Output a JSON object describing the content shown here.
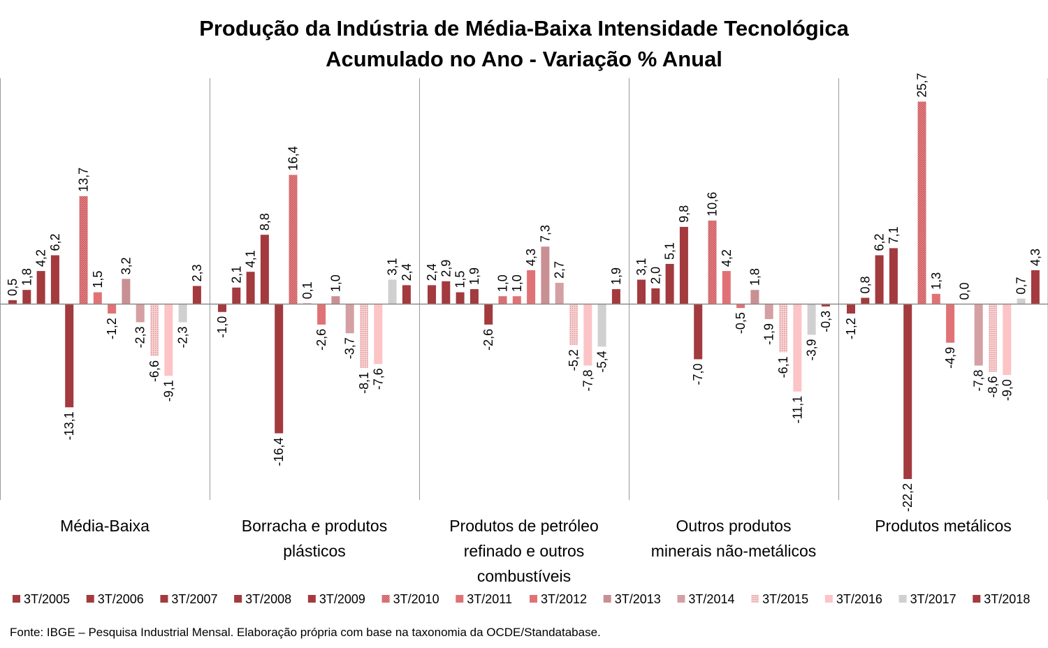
{
  "chart_data": {
    "type": "bar",
    "title": "Produção da Indústria de Média-Baixa Intensidade Tecnológica",
    "subtitle": "Acumulado no Ano - Variação % Anual",
    "categories": [
      "Média-Baixa",
      "Borracha e produtos plásticos",
      "Produtos de petróleo refinado e outros combustíveis",
      "Outros produtos minerais não-metálicos",
      "Produtos metálicos"
    ],
    "series": [
      {
        "name": "3T/2005",
        "color": "#a33a3e",
        "values": [
          0.5,
          -1.0,
          2.4,
          3.1,
          -1.2
        ]
      },
      {
        "name": "3T/2006",
        "color": "#a33a3e",
        "values": [
          1.8,
          2.1,
          2.9,
          2.0,
          0.8
        ]
      },
      {
        "name": "3T/2007",
        "color": "#a33a3e",
        "values": [
          4.2,
          4.1,
          1.5,
          5.1,
          6.2
        ]
      },
      {
        "name": "3T/2008",
        "color": "#a33a3e",
        "values": [
          6.2,
          8.8,
          1.9,
          9.8,
          7.1
        ]
      },
      {
        "name": "3T/2009",
        "color": "#a33a3e",
        "values": [
          -13.1,
          -16.4,
          -2.6,
          -7.0,
          -22.2
        ]
      },
      {
        "name": "3T/2010",
        "color": "#d9696c",
        "pattern": "hatch",
        "values": [
          13.7,
          16.4,
          1.0,
          10.6,
          25.7
        ]
      },
      {
        "name": "3T/2011",
        "color": "#e07275",
        "values": [
          1.5,
          0.1,
          1.0,
          4.2,
          1.3
        ]
      },
      {
        "name": "3T/2012",
        "color": "#e07275",
        "values": [
          -1.2,
          -2.6,
          4.3,
          -0.5,
          -4.9
        ]
      },
      {
        "name": "3T/2013",
        "color": "#c99093",
        "values": [
          3.2,
          1.0,
          7.3,
          1.8,
          0.0
        ]
      },
      {
        "name": "3T/2014",
        "color": "#d4a0a3",
        "values": [
          -2.3,
          -3.7,
          2.7,
          -1.9,
          -7.8
        ]
      },
      {
        "name": "3T/2015",
        "color": "#eca8ab",
        "pattern": "dots",
        "values": [
          -6.6,
          -8.1,
          -5.2,
          -6.1,
          -8.6
        ]
      },
      {
        "name": "3T/2016",
        "color": "#fcc4c6",
        "values": [
          -9.1,
          -7.6,
          -7.8,
          -11.1,
          -9.0
        ]
      },
      {
        "name": "3T/2017",
        "color": "#d0d0d0",
        "values": [
          -2.3,
          3.1,
          -5.4,
          -3.9,
          0.7
        ]
      },
      {
        "name": "3T/2018",
        "color": "#a33a3e",
        "values": [
          2.3,
          2.4,
          1.9,
          -0.3,
          4.3
        ]
      }
    ],
    "ylim": [
      -25,
      28.5
    ],
    "grid": false,
    "legend_position": "bottom"
  },
  "category_label_lines": [
    [
      "Média-Baixa"
    ],
    [
      "Borracha e produtos",
      "plásticos"
    ],
    [
      "Produtos de petróleo",
      "refinado e outros",
      "combustíveis"
    ],
    [
      "Outros produtos",
      "minerais não-metálicos"
    ],
    [
      "Produtos metálicos"
    ]
  ],
  "source": "Fonte: IBGE – Pesquisa Industrial Mensal. Elaboração própria com base na taxonomia da OCDE/Standatabase."
}
